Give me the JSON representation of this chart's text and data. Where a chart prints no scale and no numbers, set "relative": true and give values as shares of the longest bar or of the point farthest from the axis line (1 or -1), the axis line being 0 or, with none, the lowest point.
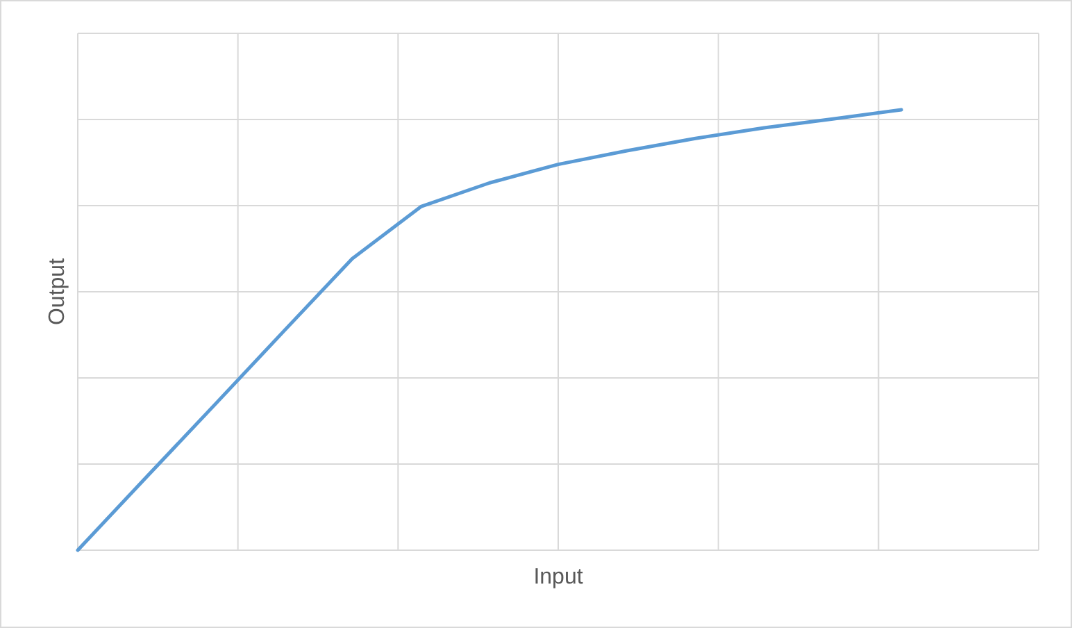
{
  "chart_data": {
    "type": "line",
    "xlabel": "Input",
    "ylabel": "Output",
    "relative": true,
    "grid": true,
    "categories": [
      null,
      null,
      null,
      null,
      null,
      null,
      null,
      null,
      null,
      null,
      null,
      null,
      null,
      null,
      null
    ],
    "series": [
      {
        "color": "#5b9bd5",
        "values": [
          0,
          0.166,
          0.331,
          0.497,
          0.662,
          0.78,
          0.834,
          0.876,
          0.907,
          0.935,
          0.959,
          0.979,
          1,
          null,
          null
        ]
      }
    ]
  }
}
